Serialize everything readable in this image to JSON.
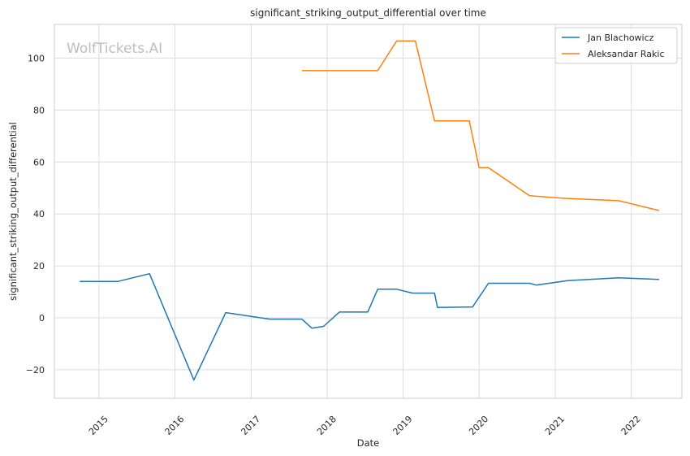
{
  "chart_data": {
    "type": "line",
    "title": "significant_striking_output_differential over time",
    "xlabel": "Date",
    "ylabel": "significant_striking_output_differential",
    "watermark": "WolfTickets.AI",
    "x_ticks": [
      "2015",
      "2016",
      "2017",
      "2018",
      "2019",
      "2020",
      "2021",
      "2022"
    ],
    "y_ticks": [
      -20,
      0,
      20,
      40,
      60,
      80,
      100
    ],
    "y_tick_labels": [
      "−20",
      "0",
      "20",
      "40",
      "60",
      "80",
      "100"
    ],
    "xlim": [
      "2014-06-01",
      "2022-09-01"
    ],
    "ylim": [
      -31,
      113
    ],
    "grid": true,
    "legend_position": "top-right",
    "series": [
      {
        "name": "Jan Blachowicz",
        "color": "#1f77b4",
        "points": [
          [
            "2014-10-01",
            14
          ],
          [
            "2015-04-01",
            14
          ],
          [
            "2015-09-01",
            17
          ],
          [
            "2016-04-01",
            -24
          ],
          [
            "2016-09-01",
            2
          ],
          [
            "2017-04-01",
            -0.5
          ],
          [
            "2017-09-01",
            -0.5
          ],
          [
            "2017-10-20",
            -4
          ],
          [
            "2017-12-15",
            -3.3
          ],
          [
            "2018-03-01",
            2.2
          ],
          [
            "2018-07-15",
            2.2
          ],
          [
            "2018-09-01",
            11
          ],
          [
            "2018-12-01",
            11
          ],
          [
            "2019-02-15",
            9.5
          ],
          [
            "2019-06-01",
            9.5
          ],
          [
            "2019-06-15",
            4
          ],
          [
            "2019-12-01",
            4.2
          ],
          [
            "2020-02-15",
            13.3
          ],
          [
            "2020-08-30",
            13.3
          ],
          [
            "2020-10-01",
            12.6
          ],
          [
            "2021-03-01",
            14.3
          ],
          [
            "2021-11-01",
            15.4
          ],
          [
            "2022-05-15",
            14.8
          ]
        ]
      },
      {
        "name": "Aleksandar Rakic",
        "color": "#ff7f0e",
        "points": [
          [
            "2017-09-01",
            95.2
          ],
          [
            "2018-09-01",
            95.2
          ],
          [
            "2018-12-01",
            106.6
          ],
          [
            "2019-03-01",
            106.6
          ],
          [
            "2019-06-01",
            75.8
          ],
          [
            "2019-11-15",
            75.8
          ],
          [
            "2020-01-01",
            57.8
          ],
          [
            "2020-02-15",
            57.8
          ],
          [
            "2020-08-30",
            47
          ],
          [
            "2021-02-15",
            46
          ],
          [
            "2021-11-01",
            45.1
          ],
          [
            "2022-05-15",
            41.3
          ]
        ]
      }
    ]
  }
}
